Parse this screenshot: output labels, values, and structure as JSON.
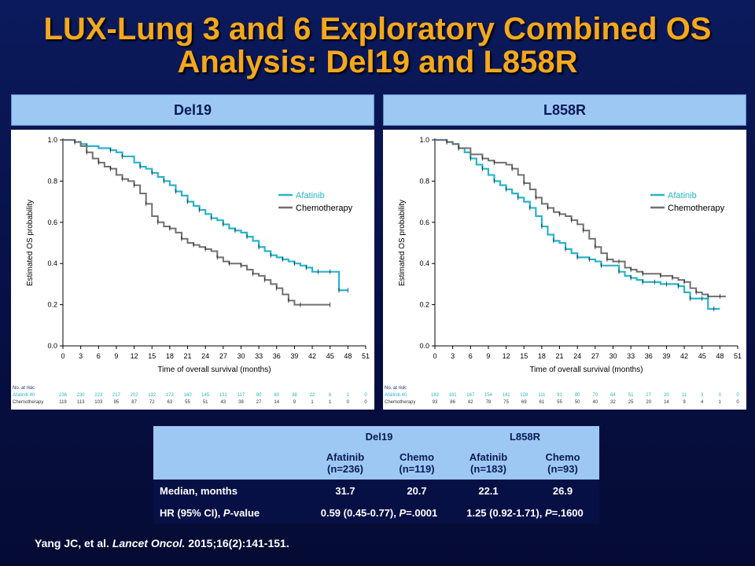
{
  "slide": {
    "title_line1": "LUX-Lung 3 and 6 Exploratory Combined OS",
    "title_line2": "Analysis: Del19 and L858R",
    "reference": {
      "authors": "Yang JC, et al.",
      "journal": "Lancet Oncol.",
      "details": "2015;16(2):141-151."
    }
  },
  "colors": {
    "afatinib": "#2ab3c9",
    "chemotherapy": "#707070",
    "title": "#f4a81d",
    "header": "#9dc8f4"
  },
  "chart_data": [
    {
      "panel_label": "Del19",
      "type": "line",
      "xlabel": "Time of overall survival (months)",
      "ylabel": "Estimated OS probability",
      "xlim": [
        0,
        51
      ],
      "ylim": [
        0,
        1.0
      ],
      "xticks": [
        0,
        3,
        6,
        9,
        12,
        15,
        18,
        21,
        24,
        27,
        30,
        33,
        36,
        39,
        42,
        45,
        48,
        51
      ],
      "yticks": [
        "0.0",
        "0.2",
        "0.4",
        "0.6",
        "0.8",
        "1.0"
      ],
      "legend_position": "right",
      "series": [
        {
          "name": "Afatinib",
          "color": "#2ab3c9",
          "x": [
            0,
            2,
            3,
            4,
            6,
            8,
            9,
            10,
            12,
            13,
            14,
            15,
            16,
            17,
            18,
            19,
            20,
            21,
            22,
            23,
            24,
            25,
            26,
            27,
            28,
            29,
            30,
            31,
            32,
            33,
            34,
            35,
            36,
            37,
            38,
            39,
            40,
            41,
            42,
            43,
            44,
            45,
            46,
            46.5,
            47,
            48
          ],
          "y": [
            1.0,
            0.99,
            0.98,
            0.97,
            0.96,
            0.95,
            0.94,
            0.92,
            0.89,
            0.87,
            0.86,
            0.84,
            0.82,
            0.8,
            0.78,
            0.75,
            0.73,
            0.7,
            0.68,
            0.66,
            0.64,
            0.62,
            0.61,
            0.59,
            0.57,
            0.56,
            0.55,
            0.53,
            0.51,
            0.48,
            0.46,
            0.44,
            0.43,
            0.42,
            0.41,
            0.4,
            0.39,
            0.38,
            0.36,
            0.36,
            0.36,
            0.36,
            0.36,
            0.27,
            0.27,
            0.27
          ]
        },
        {
          "name": "Chemotherapy",
          "color": "#707070",
          "x": [
            0,
            2,
            3,
            4,
            5,
            6,
            7,
            8,
            9,
            10,
            11,
            12,
            13,
            14,
            15,
            16,
            17,
            18,
            19,
            20,
            21,
            22,
            23,
            24,
            25,
            26,
            27,
            28,
            29,
            30,
            31,
            32,
            33,
            34,
            35,
            36,
            37,
            38,
            39,
            40,
            42,
            45
          ],
          "y": [
            1.0,
            0.99,
            0.97,
            0.94,
            0.91,
            0.89,
            0.87,
            0.86,
            0.83,
            0.81,
            0.8,
            0.78,
            0.74,
            0.69,
            0.63,
            0.6,
            0.58,
            0.57,
            0.55,
            0.52,
            0.5,
            0.49,
            0.48,
            0.47,
            0.46,
            0.43,
            0.41,
            0.4,
            0.4,
            0.39,
            0.37,
            0.35,
            0.34,
            0.32,
            0.3,
            0.28,
            0.25,
            0.22,
            0.2,
            0.2,
            0.2,
            0.2
          ]
        }
      ],
      "at_risk": {
        "header": "No. at risk:",
        "rows": [
          {
            "label": "Afatinib 40",
            "values": [
              "236",
              "230",
              "223",
              "217",
              "202",
              "192",
              "173",
              "160",
              "145",
              "131",
              "117",
              "90",
              "60",
              "38",
              "22",
              "6",
              "1",
              "0"
            ]
          },
          {
            "label": "Chemotherapy",
            "values": [
              "119",
              "113",
              "103",
              "95",
              "87",
              "72",
              "63",
              "55",
              "51",
              "43",
              "38",
              "27",
              "14",
              "9",
              "1",
              "1",
              "0",
              "0"
            ]
          }
        ]
      }
    },
    {
      "panel_label": "L858R",
      "type": "line",
      "xlabel": "Time of overall survival (months)",
      "ylabel": "Estimated OS probability",
      "xlim": [
        0,
        51
      ],
      "ylim": [
        0,
        1.0
      ],
      "xticks": [
        0,
        3,
        6,
        9,
        12,
        15,
        18,
        21,
        24,
        27,
        30,
        33,
        36,
        39,
        42,
        45,
        48,
        51
      ],
      "yticks": [
        "0.0",
        "0.2",
        "0.4",
        "0.6",
        "0.8",
        "1.0"
      ],
      "legend_position": "right",
      "series": [
        {
          "name": "Afatinib",
          "color": "#2ab3c9",
          "x": [
            0,
            2,
            3,
            4,
            5,
            6,
            7,
            8,
            9,
            10,
            11,
            12,
            13,
            14,
            15,
            16,
            17,
            18,
            19,
            20,
            21,
            22,
            23,
            24,
            25,
            26,
            27,
            28,
            30,
            31,
            32,
            33,
            34,
            35,
            36,
            37,
            38,
            39,
            40,
            41,
            42,
            43,
            44,
            45,
            46,
            47,
            48
          ],
          "y": [
            1.0,
            0.99,
            0.98,
            0.96,
            0.94,
            0.91,
            0.88,
            0.86,
            0.83,
            0.8,
            0.78,
            0.76,
            0.74,
            0.72,
            0.7,
            0.67,
            0.63,
            0.58,
            0.54,
            0.51,
            0.5,
            0.47,
            0.45,
            0.43,
            0.43,
            0.42,
            0.41,
            0.39,
            0.39,
            0.36,
            0.34,
            0.33,
            0.32,
            0.31,
            0.31,
            0.31,
            0.3,
            0.3,
            0.3,
            0.29,
            0.26,
            0.23,
            0.23,
            0.23,
            0.18,
            0.18,
            0.18
          ]
        },
        {
          "name": "Chemotherapy",
          "color": "#707070",
          "x": [
            0,
            2,
            3,
            4,
            6,
            8,
            9,
            10,
            12,
            13,
            14,
            15,
            16,
            17,
            18,
            19,
            20,
            21,
            22,
            23,
            24,
            25,
            26,
            27,
            28,
            29,
            30,
            31,
            32,
            33,
            34,
            35,
            36,
            38,
            39,
            40,
            41,
            42,
            43,
            44,
            45,
            46,
            47,
            48,
            49
          ],
          "y": [
            1.0,
            0.99,
            0.98,
            0.96,
            0.93,
            0.91,
            0.9,
            0.89,
            0.88,
            0.86,
            0.83,
            0.79,
            0.76,
            0.72,
            0.69,
            0.67,
            0.65,
            0.64,
            0.63,
            0.61,
            0.59,
            0.56,
            0.52,
            0.48,
            0.45,
            0.42,
            0.41,
            0.41,
            0.38,
            0.37,
            0.36,
            0.35,
            0.35,
            0.34,
            0.34,
            0.33,
            0.32,
            0.31,
            0.28,
            0.26,
            0.25,
            0.24,
            0.24,
            0.24,
            0.24
          ]
        }
      ],
      "at_risk": {
        "header": "No. at risk:",
        "rows": [
          {
            "label": "Afatinib 40",
            "values": [
              "183",
              "181",
              "167",
              "154",
              "141",
              "128",
              "111",
              "91",
              "80",
              "70",
              "64",
              "51",
              "27",
              "20",
              "11",
              "3",
              "0",
              "0"
            ]
          },
          {
            "label": "Chemotherapy",
            "values": [
              "93",
              "86",
              "82",
              "78",
              "75",
              "69",
              "61",
              "55",
              "50",
              "40",
              "32",
              "25",
              "20",
              "14",
              "9",
              "4",
              "1",
              "0"
            ]
          }
        ]
      }
    }
  ],
  "results_table": {
    "groups": [
      "Del19",
      "L858R"
    ],
    "columns": [
      "Afatinib\n(n=236)",
      "Chemo\n(n=119)",
      "Afatinib\n(n=183)",
      "Chemo\n(n=93)"
    ],
    "median_label": "Median, months",
    "medians": [
      "31.7",
      "20.7",
      "22.1",
      "26.9"
    ],
    "hr_label_prefix": "HR (95% CI), ",
    "hr_label_p": "P",
    "hr_label_suffix": "-value",
    "hr": [
      {
        "ci": "0.59 (0.45-0.77), ",
        "p_letter": "P",
        "p_value": "=.0001"
      },
      {
        "ci": "1.25 (0.92-1.71), ",
        "p_letter": "P",
        "p_value": "=.1600"
      }
    ]
  }
}
